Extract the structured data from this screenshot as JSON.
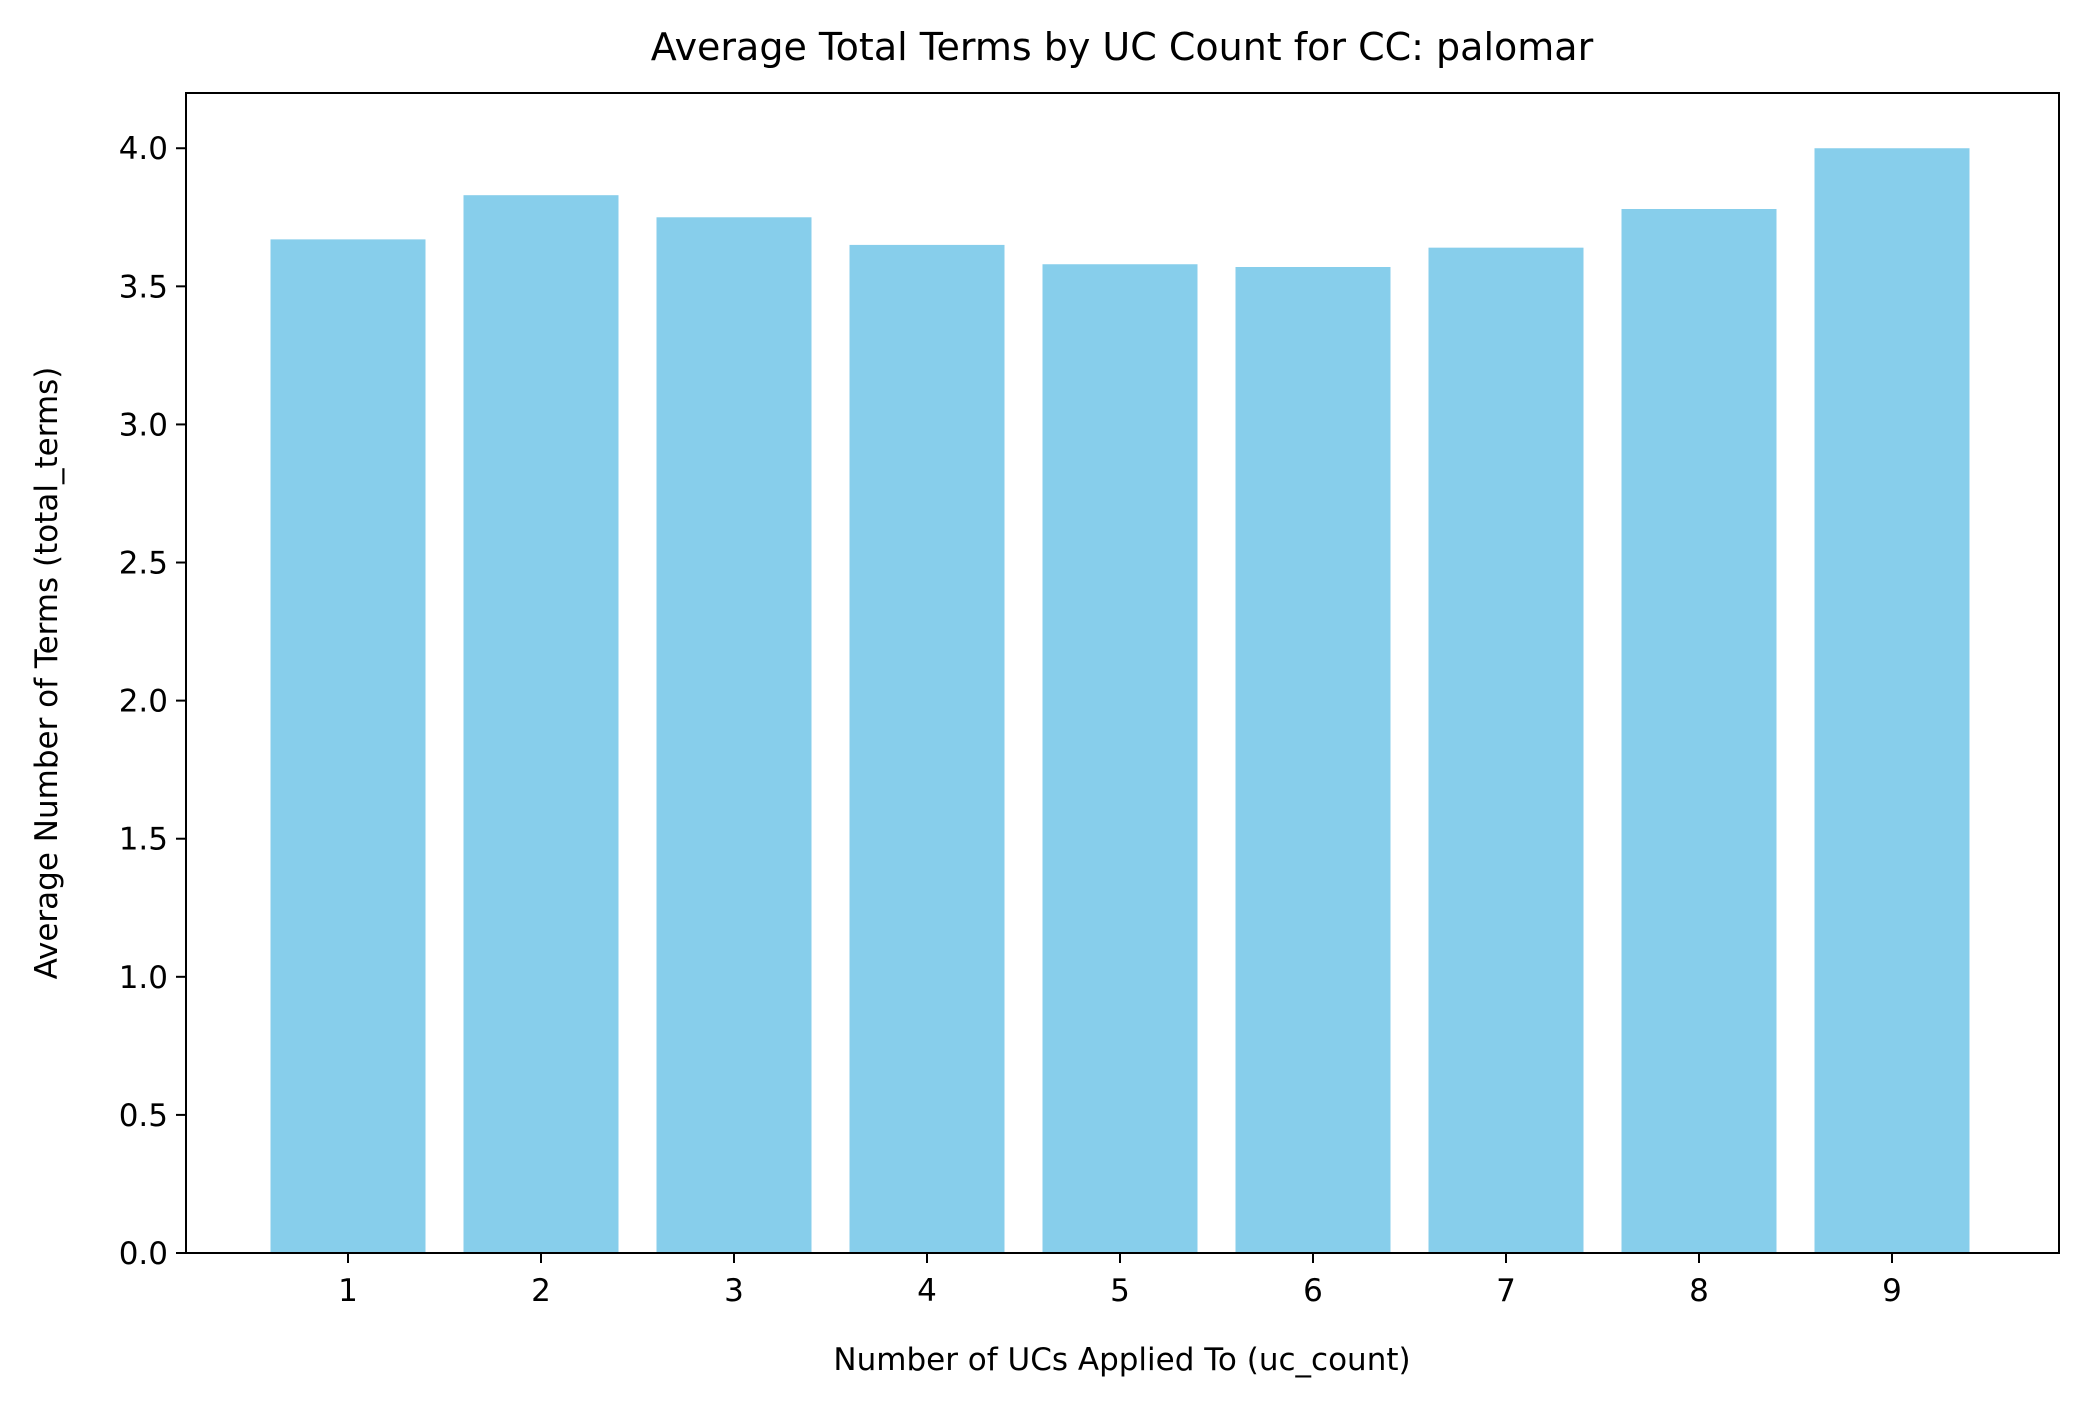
{
  "chart_data": {
    "type": "bar",
    "title": "Average Total Terms by UC Count for CC: palomar",
    "xlabel": "Number of UCs Applied To (uc_count)",
    "ylabel": "Average Number of Terms (total_terms)",
    "categories": [
      "1",
      "2",
      "3",
      "4",
      "5",
      "6",
      "7",
      "8",
      "9"
    ],
    "values": [
      3.67,
      3.83,
      3.75,
      3.65,
      3.58,
      3.57,
      3.64,
      3.78,
      4.0
    ],
    "ylim": [
      0,
      4.2
    ],
    "yticks": [
      "0.0",
      "0.5",
      "1.0",
      "1.5",
      "2.0",
      "2.5",
      "3.0",
      "3.5",
      "4.0"
    ],
    "grid": false,
    "legend": "none",
    "bar_color": "#87CEEB"
  }
}
